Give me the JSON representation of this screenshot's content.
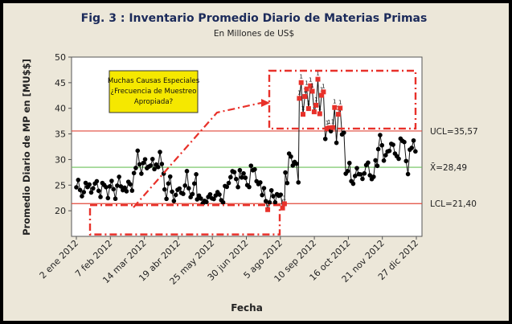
{
  "chart_data": {
    "type": "line",
    "title": "Fig. 3 : Inventario Promedio Diario de Materias Primas",
    "subtitle": "En Millones de US$",
    "xlabel": "Fecha",
    "ylabel": "Promedio Diario de MP en [MU$$]",
    "ylim": [
      15,
      50
    ],
    "yticks": [
      20,
      25,
      30,
      35,
      40,
      45,
      50
    ],
    "xtick_labels": [
      "2 ene 2012",
      "7 feb 2012",
      "14 mar 2012",
      "19 abr 2012",
      "25 may 2012",
      "30 jun 2012",
      "5 ago 2012",
      "10 sep 2012",
      "16 oct 2012",
      "21 nov 2012",
      "27 dic 2012"
    ],
    "limits": [
      {
        "name": "UCL",
        "label": "UCL=35,57",
        "value": 35.57,
        "color": "#e0483a"
      },
      {
        "name": "CL",
        "label": "X̄=28,49",
        "value": 28.49,
        "color": "#6cc25a"
      },
      {
        "name": "LCL",
        "label": "LCL=21,40",
        "value": 21.4,
        "color": "#e0483a"
      }
    ],
    "annotation": [
      "Muchas Causas Especiales",
      "¿Frecuencia de Muestreo",
      "Apropiada?"
    ],
    "segments": [
      {
        "from": 0,
        "to": 62,
        "base": 24.6,
        "amp": 1.6,
        "period": 9
      },
      {
        "from": 62,
        "to": 95,
        "base": 29.2,
        "amp": 1.6,
        "period": 8
      },
      {
        "from": 95,
        "to": 130,
        "base": 24.4,
        "amp": 2.2,
        "period": 9
      },
      {
        "from": 130,
        "to": 160,
        "base": 22.3,
        "amp": 1.0,
        "period": 10
      },
      {
        "from": 160,
        "to": 200,
        "base": 26.6,
        "amp": 1.8,
        "period": 11
      },
      {
        "from": 200,
        "to": 225,
        "base": 22.4,
        "amp": 1.4,
        "period": 8
      },
      {
        "from": 225,
        "to": 240,
        "base": 29.2,
        "amp": 2.6,
        "period": 6
      },
      {
        "from": 240,
        "to": 268,
        "base": 43.0,
        "amp": 3.0,
        "period": 6
      },
      {
        "from": 268,
        "to": 290,
        "base": 36.5,
        "amp": 3.4,
        "period": 6
      },
      {
        "from": 290,
        "to": 325,
        "base": 27.6,
        "amp": 1.6,
        "period": 10
      },
      {
        "from": 325,
        "to": 366,
        "base": 31.0,
        "amp": 2.6,
        "period": 12
      }
    ],
    "xlim": [
      0,
      366
    ],
    "series_color": "#000000",
    "outlier_color": "#e8312a",
    "annotation_color": "#e8312a",
    "legend_box_color": "#f5e800",
    "grid": false
  }
}
